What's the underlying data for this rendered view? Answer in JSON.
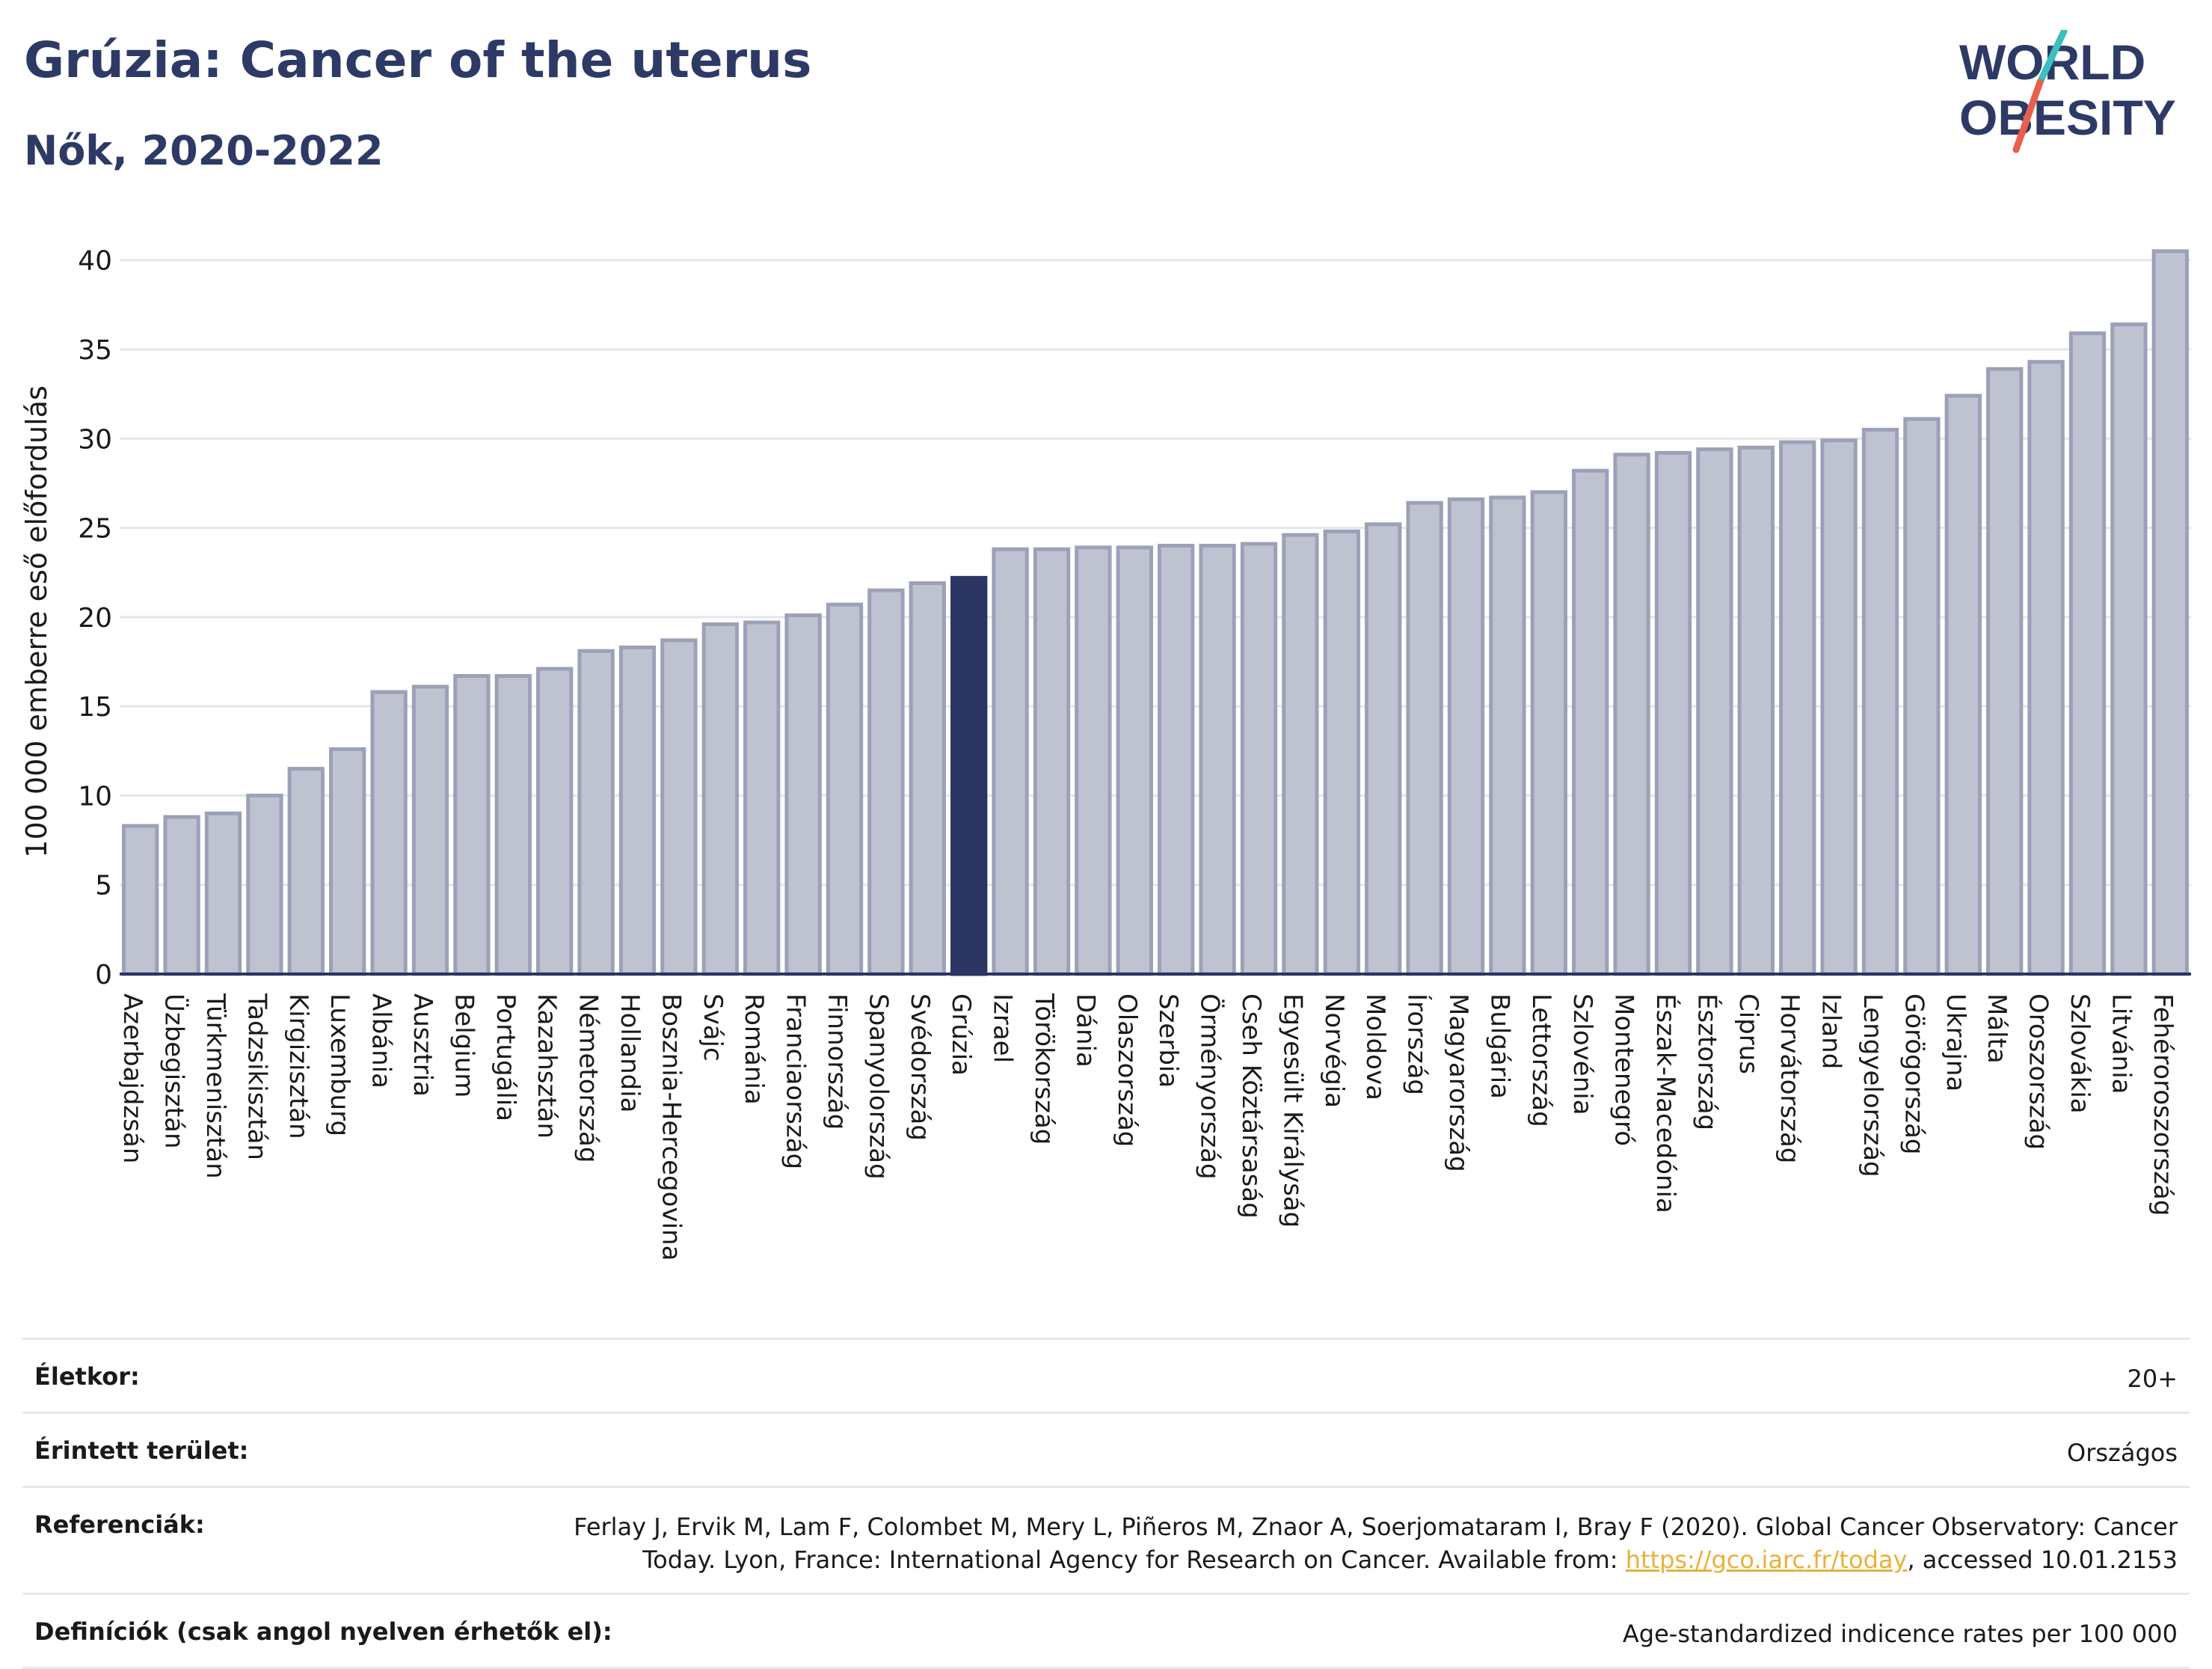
{
  "header": {
    "title": "Grúzia: Cancer of the uterus",
    "subtitle": "Nők, 2020-2022"
  },
  "logo": {
    "line1": "WORLD",
    "line2": "OBESITY",
    "colors": {
      "text": "#2d3a66",
      "slash_red": "#e8604c",
      "slash_teal": "#3bbfc1"
    }
  },
  "colors": {
    "bar_fill": "#bfc3d1",
    "bar_stroke": "#9ca1b8",
    "highlight_fill": "#2b3561",
    "axis": "#2a3560",
    "grid": "#e3e6ec"
  },
  "chart_data": {
    "type": "bar",
    "title": "Grúzia: Cancer of the uterus",
    "subtitle": "Nők, 2020-2022",
    "ylabel": "100 000 emberre eső előfordulás",
    "ylim": [
      0,
      42
    ],
    "yticks": [
      0,
      5,
      10,
      15,
      20,
      25,
      30,
      35,
      40
    ],
    "grid": true,
    "highlight": "Grúzia",
    "categories": [
      "Azerbajdzsán",
      "Üzbegisztán",
      "Türkmenisztán",
      "Tadzsikisztán",
      "Kirgizisztán",
      "Luxemburg",
      "Albánia",
      "Ausztria",
      "Belgium",
      "Portugália",
      "Kazahsztán",
      "Németország",
      "Hollandia",
      "Bosznia-Hercegovina",
      "Svájc",
      "Románia",
      "Franciaország",
      "Finnország",
      "Spanyolország",
      "Svédország",
      "Grúzia",
      "Izrael",
      "Törökország",
      "Dánia",
      "Olaszország",
      "Szerbia",
      "Örményország",
      "Cseh Köztársaság",
      "Egyesült Királyság",
      "Norvégia",
      "Moldova",
      "Írország",
      "Magyarország",
      "Bulgária",
      "Lettország",
      "Szlovénia",
      "Montenegró",
      "Észak-Macedónia",
      "Észtország",
      "Ciprus",
      "Horvátország",
      "Izland",
      "Lengyelország",
      "Görögország",
      "Ukrajna",
      "Málta",
      "Oroszország",
      "Szlovákia",
      "Litvánia",
      "Fehéroroszország"
    ],
    "values": [
      8.3,
      8.8,
      9.0,
      10.0,
      11.5,
      12.6,
      15.8,
      16.1,
      16.7,
      16.7,
      17.1,
      18.1,
      18.3,
      18.7,
      19.6,
      19.7,
      20.1,
      20.7,
      21.5,
      21.9,
      22.2,
      23.8,
      23.8,
      23.9,
      23.9,
      24.0,
      24.0,
      24.1,
      24.6,
      24.8,
      25.2,
      26.4,
      26.6,
      26.7,
      27.0,
      28.2,
      29.1,
      29.2,
      29.4,
      29.5,
      29.8,
      29.9,
      30.5,
      31.1,
      32.4,
      33.9,
      34.3,
      35.9,
      36.4,
      40.5
    ]
  },
  "meta": {
    "rows": [
      {
        "label": "Életkor:",
        "value": "20+"
      },
      {
        "label": "Érintett terület:",
        "value": "Országos"
      },
      {
        "label": "Referenciák:",
        "value_pre": "Ferlay J, Ervik M, Lam F, Colombet M, Mery L, Piñeros M, Znaor A, Soerjomataram I, Bray F (2020). Global Cancer Observatory: Cancer Today. Lyon, France: International Agency for Research on Cancer. Available from: ",
        "link": "https://gco.iarc.fr/today",
        "value_post": ", accessed 10.01.2153"
      },
      {
        "label": "Definíciók (csak angol nyelven érhetők el):",
        "value": "Age-standardized indicence rates per 100 000"
      }
    ]
  }
}
